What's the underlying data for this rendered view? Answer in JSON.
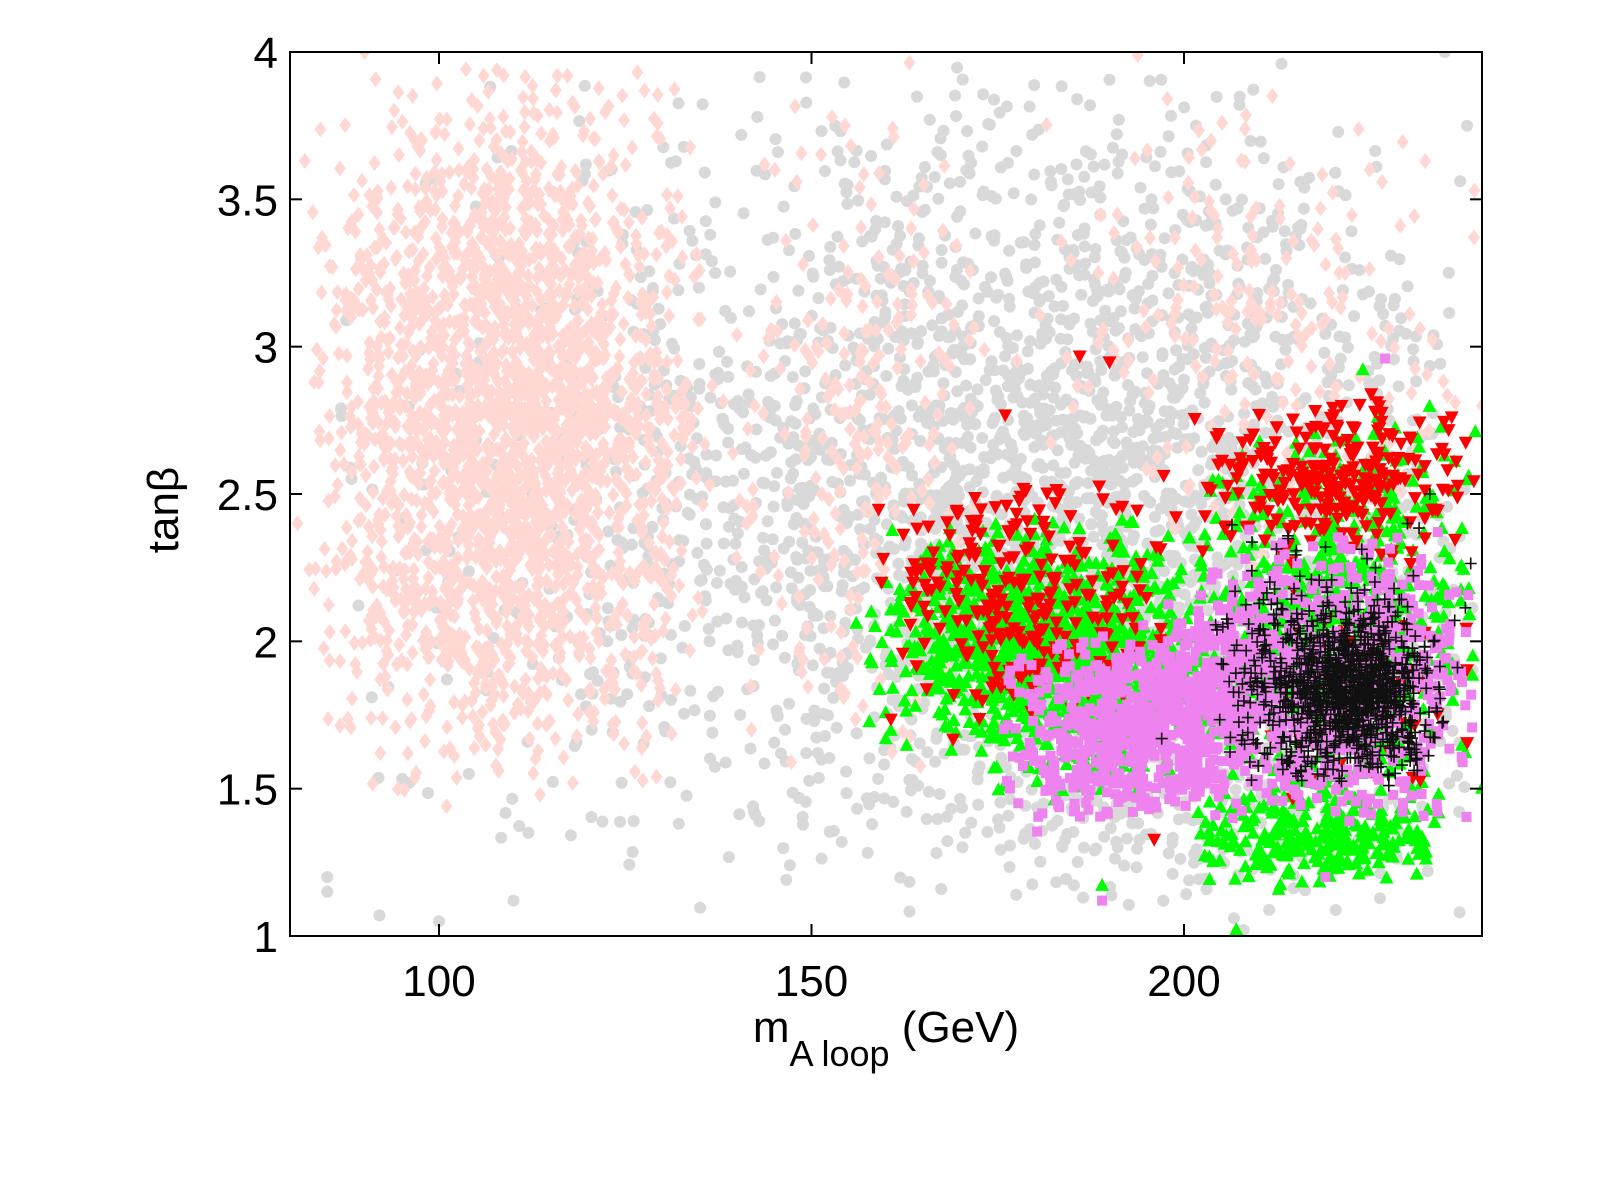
{
  "chart_data": {
    "type": "scatter",
    "title": "",
    "xlabel": {
      "main": "m",
      "subscript": "A loop",
      "suffix": " (GeV)"
    },
    "ylabel": "tanβ",
    "xlim": [
      80,
      240
    ],
    "ylim": [
      1,
      4
    ],
    "xticks": [
      100,
      150,
      200
    ],
    "yticks": [
      1,
      1.5,
      2,
      2.5,
      3,
      3.5,
      4
    ],
    "xtick_labels": [
      "100",
      "150",
      "200"
    ],
    "ytick_labels": [
      "1",
      "1.5",
      "2",
      "2.5",
      "3",
      "3.5",
      "4"
    ],
    "grid": false,
    "legend": null,
    "series": [
      {
        "marker": "circle",
        "color": "#d9d9d9",
        "regions": [
          {
            "x": [
              84,
              240
            ],
            "y": [
              1.03,
              4.0
            ],
            "n": 1500
          },
          {
            "x": [
              140,
              240
            ],
            "y": [
              1.03,
              4.0
            ],
            "n": 1300
          },
          {
            "x": [
              165,
              240
            ],
            "y": [
              1.05,
              2.6
            ],
            "n": 500
          }
        ],
        "points": [
          {
            "x": 85,
            "y": 1.2
          },
          {
            "x": 85,
            "y": 1.15
          },
          {
            "x": 92,
            "y": 1.07
          },
          {
            "x": 100,
            "y": 1.05
          },
          {
            "x": 96,
            "y": 1.52
          },
          {
            "x": 104,
            "y": 1.55
          },
          {
            "x": 110,
            "y": 1.12
          },
          {
            "x": 112,
            "y": 1.35
          },
          {
            "x": 235,
            "y": 4.0
          },
          {
            "x": 238,
            "y": 3.75
          },
          {
            "x": 208,
            "y": 1.02
          },
          {
            "x": 237,
            "y": 1.08
          }
        ]
      },
      {
        "marker": "diamond",
        "color": "#ffd8d4",
        "regions": [
          {
            "x": [
              82,
              137
            ],
            "y": [
              1.45,
              4.0
            ],
            "n": 2400
          },
          {
            "x": [
              137,
              175
            ],
            "y": [
              1.5,
              4.0
            ],
            "n": 250
          },
          {
            "x": [
              175,
              240
            ],
            "y": [
              2.2,
              4.0
            ],
            "n": 220
          }
        ],
        "points": [
          {
            "x": 81,
            "y": 2.4
          },
          {
            "x": 82,
            "y": 3.63
          },
          {
            "x": 90,
            "y": 4.0
          },
          {
            "x": 101,
            "y": 1.44
          },
          {
            "x": 108,
            "y": 1.56
          },
          {
            "x": 239,
            "y": 3.53
          },
          {
            "x": 240,
            "y": 2.8
          }
        ]
      },
      {
        "marker": "triangle-up",
        "color": "#00ff00",
        "regions": [
          {
            "x": [
              157,
              200
            ],
            "y": [
              1.6,
              2.45
            ],
            "n": 700
          },
          {
            "x": [
              170,
              205
            ],
            "y": [
              1.45,
              2.35
            ],
            "n": 350
          },
          {
            "x": [
              200,
              240
            ],
            "y": [
              1.3,
              2.8
            ],
            "n": 750
          },
          {
            "x": [
              200,
              235
            ],
            "y": [
              1.15,
              1.5
            ],
            "n": 250
          }
        ],
        "points": [
          {
            "x": 207,
            "y": 1.02
          },
          {
            "x": 189,
            "y": 1.17
          },
          {
            "x": 224,
            "y": 2.92
          },
          {
            "x": 156,
            "y": 2.06
          },
          {
            "x": 240,
            "y": 1.5
          }
        ]
      },
      {
        "marker": "triangle-down",
        "color": "#ff0000",
        "regions": [
          {
            "x": [
              158,
              200
            ],
            "y": [
              1.7,
              2.65
            ],
            "n": 260
          },
          {
            "x": [
              200,
              240
            ],
            "y": [
              2.25,
              2.85
            ],
            "n": 260
          },
          {
            "x": [
              210,
              240
            ],
            "y": [
              1.45,
              2.2
            ],
            "n": 60
          }
        ],
        "points": [
          {
            "x": 186,
            "y": 2.97
          },
          {
            "x": 190,
            "y": 2.95
          },
          {
            "x": 176,
            "y": 2.77
          },
          {
            "x": 159,
            "y": 2.45
          },
          {
            "x": 196,
            "y": 1.33
          },
          {
            "x": 169,
            "y": 1.67
          }
        ]
      },
      {
        "marker": "square",
        "color": "#ee82ee",
        "regions": [
          {
            "x": [
              175,
              212
            ],
            "y": [
              1.35,
              2.05
            ],
            "n": 650
          },
          {
            "x": [
              205,
              240
            ],
            "y": [
              1.35,
              2.4
            ],
            "n": 650
          },
          {
            "x": [
              192,
              215
            ],
            "y": [
              1.55,
              2.25
            ],
            "n": 200
          }
        ],
        "points": [
          {
            "x": 227,
            "y": 2.96
          },
          {
            "x": 189,
            "y": 1.12
          },
          {
            "x": 219,
            "y": 1.2
          },
          {
            "x": 186,
            "y": 1.53
          }
        ]
      },
      {
        "marker": "plus",
        "color": "#111111",
        "regions": [
          {
            "x": [
              205,
              236
            ],
            "y": [
              1.5,
              2.2
            ],
            "n": 700
          },
          {
            "x": [
              215,
              232
            ],
            "y": [
              1.6,
              2.05
            ],
            "n": 300
          },
          {
            "x": [
              202,
              240
            ],
            "y": [
              1.55,
              2.45
            ],
            "n": 120
          }
        ],
        "points": [
          {
            "x": 233,
            "y": 2.5
          },
          {
            "x": 230,
            "y": 2.4
          },
          {
            "x": 219,
            "y": 2.32
          },
          {
            "x": 197,
            "y": 1.67
          }
        ]
      }
    ]
  }
}
